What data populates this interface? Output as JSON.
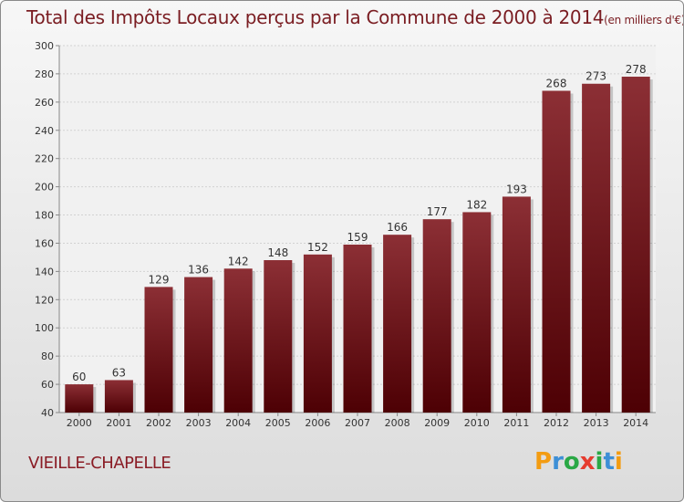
{
  "header": {
    "title": "Total des Impôts Locaux perçus par la Commune de 2000 à 2014",
    "unit": "(en milliers d'€)"
  },
  "footer": {
    "commune": "VIEILLE-CHAPELLE",
    "logo_text": "Proxiti",
    "logo_letters": [
      "P",
      "r",
      "o",
      "x",
      "i",
      "t",
      "i"
    ],
    "logo_colors": [
      "#f39c12",
      "#3d8fd6",
      "#2aa845",
      "#e63c2f",
      "#2aa845",
      "#3d8fd6",
      "#f39c12"
    ]
  },
  "colors": {
    "bar_top": "#8c2f35",
    "bar_bottom": "#4d0004",
    "text": "#333333"
  },
  "chart_data": {
    "type": "bar",
    "categories": [
      "2000",
      "2001",
      "2002",
      "2003",
      "2004",
      "2005",
      "2006",
      "2007",
      "2008",
      "2009",
      "2010",
      "2011",
      "2012",
      "2013",
      "2014"
    ],
    "values": [
      60,
      63,
      129,
      136,
      142,
      148,
      152,
      159,
      166,
      177,
      182,
      193,
      268,
      273,
      278
    ],
    "title": "Total des Impôts Locaux perçus par la Commune de 2000 à 2014",
    "ylim": [
      40,
      300
    ],
    "yticks": [
      40,
      60,
      80,
      100,
      120,
      140,
      160,
      180,
      200,
      220,
      240,
      260,
      280,
      300
    ],
    "grid": true,
    "data_labels": true
  }
}
